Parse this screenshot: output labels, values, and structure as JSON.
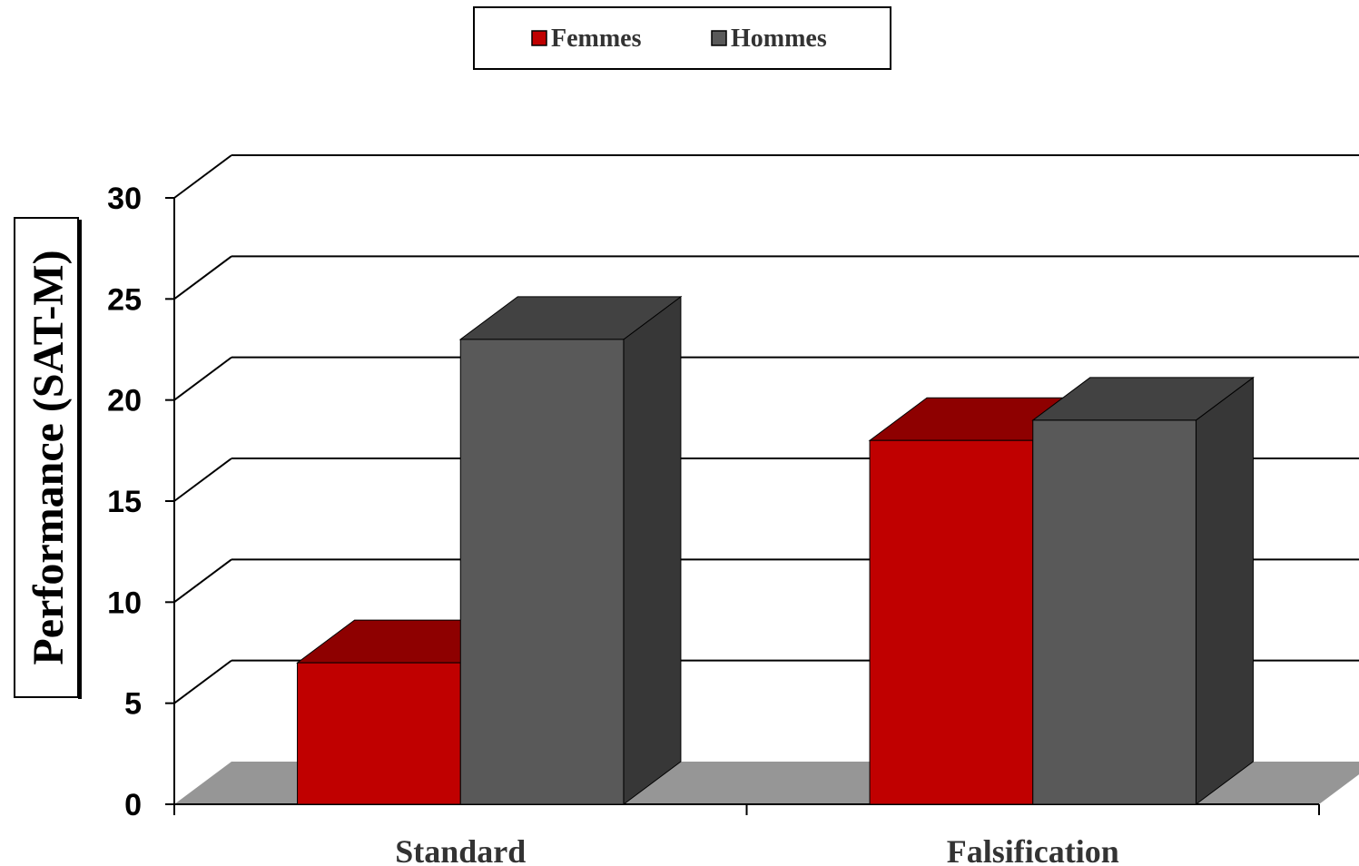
{
  "chart_data": {
    "type": "bar",
    "categories": [
      "Standard",
      "Falsification"
    ],
    "series": [
      {
        "name": "Femmes",
        "values": [
          7,
          18
        ],
        "color": "#C00000"
      },
      {
        "name": "Hommes",
        "values": [
          23,
          19
        ],
        "color": "#595959"
      }
    ],
    "ylabel": "Performance (SAT-M)",
    "xlabel": "",
    "ylim": [
      0,
      30
    ],
    "yticks": [
      0,
      5,
      10,
      15,
      20,
      25,
      30
    ],
    "grid": true,
    "legend_position": "top",
    "style": "3d-bar"
  }
}
